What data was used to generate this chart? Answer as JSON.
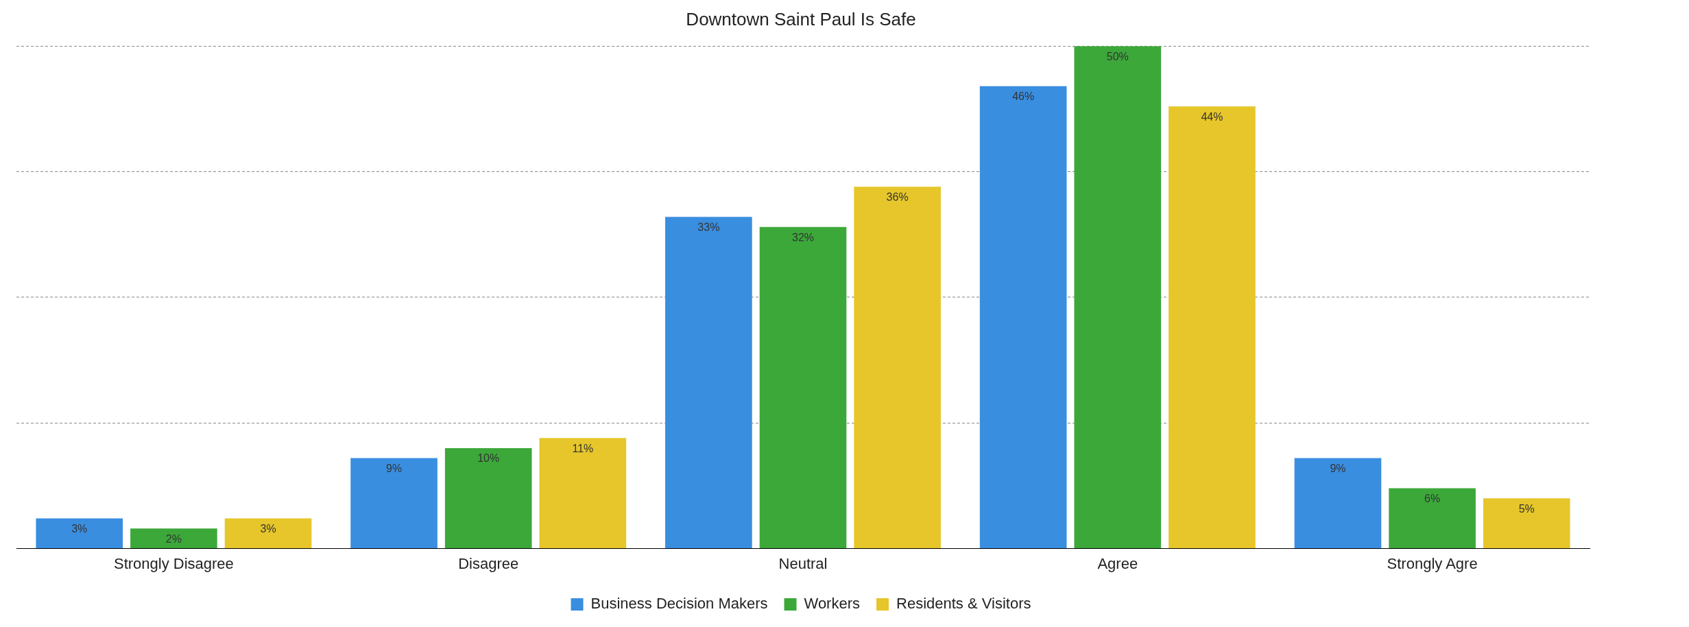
{
  "chart_data": {
    "type": "bar",
    "title": "Downtown Saint Paul Is Safe",
    "categories": [
      "Strongly Disagree",
      "Disagree",
      "Neutral",
      "Agree",
      "Strongly Agre"
    ],
    "series": [
      {
        "name": "Business Decision Makers",
        "color": "#3a8ee0",
        "values": [
          3,
          9,
          33,
          46,
          9
        ],
        "value_labels": [
          "3%",
          "9%",
          "33%",
          "46%",
          "9%"
        ]
      },
      {
        "name": "Workers",
        "color": "#3ca83a",
        "values": [
          2,
          10,
          32,
          50,
          6
        ],
        "value_labels": [
          "2%",
          "10%",
          "32%",
          "50%",
          "6%"
        ]
      },
      {
        "name": "Residents & Visitors",
        "color": "#e6c62a",
        "values": [
          3,
          11,
          36,
          44,
          5
        ],
        "value_labels": [
          "3%",
          "11%",
          "36%",
          "44%",
          "5%"
        ]
      }
    ],
    "ylim": [
      0,
      50
    ],
    "yticks": [
      {
        "value": 0,
        "label": null
      },
      {
        "value": 12.5,
        "label": null
      },
      {
        "value": 25,
        "label": null
      },
      {
        "value": 37.5,
        "label": null
      },
      {
        "value": 50,
        "label": null
      }
    ],
    "grid": "y",
    "legend": "bottom"
  }
}
